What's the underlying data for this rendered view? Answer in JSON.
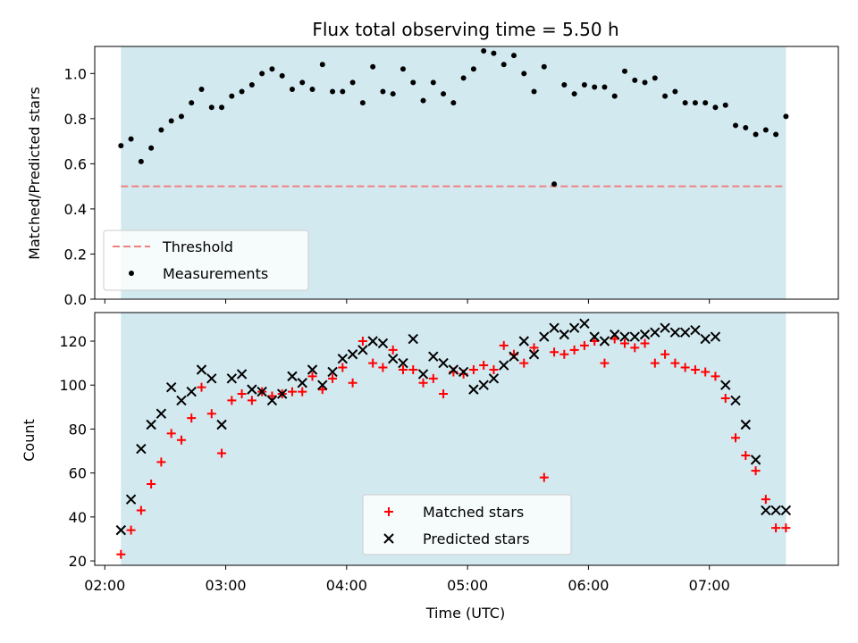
{
  "chart_data": [
    {
      "type": "scatter",
      "title": "Flux total observing time = 5.50 h",
      "xlabel": "",
      "ylabel": "Matched/Predicted stars",
      "ylim": [
        0,
        1.12
      ],
      "yticks": [
        "0.0",
        "0.2",
        "0.4",
        "0.6",
        "0.8",
        "1.0"
      ],
      "shaded_span": {
        "start": "02:08",
        "end": "07:38",
        "color": "#d3e9f0"
      },
      "grid": false,
      "legend": {
        "placement": "lower-left",
        "entries": [
          "Threshold",
          "Measurements"
        ]
      },
      "threshold": {
        "name": "Threshold",
        "y": 0.5,
        "color": "#f08080",
        "style": "dashed"
      },
      "series": [
        {
          "name": "Measurements",
          "color": "#000000",
          "marker": "dot",
          "x": [
            "02:08",
            "02:13",
            "02:18",
            "02:23",
            "02:28",
            "02:33",
            "02:38",
            "02:43",
            "02:48",
            "02:53",
            "02:58",
            "03:03",
            "03:08",
            "03:13",
            "03:18",
            "03:23",
            "03:28",
            "03:33",
            "03:38",
            "03:43",
            "03:48",
            "03:53",
            "03:58",
            "04:03",
            "04:08",
            "04:13",
            "04:18",
            "04:23",
            "04:28",
            "04:33",
            "04:38",
            "04:43",
            "04:48",
            "04:53",
            "04:58",
            "05:03",
            "05:08",
            "05:13",
            "05:18",
            "05:23",
            "05:28",
            "05:33",
            "05:38",
            "05:43",
            "05:48",
            "05:53",
            "05:58",
            "06:03",
            "06:08",
            "06:13",
            "06:18",
            "06:23",
            "06:28",
            "06:33",
            "06:38",
            "06:43",
            "06:48",
            "06:53",
            "06:58",
            "07:03",
            "07:08",
            "07:13",
            "07:18",
            "07:23",
            "07:28",
            "07:33",
            "07:38"
          ],
          "y": [
            0.68,
            0.71,
            0.61,
            0.67,
            0.75,
            0.79,
            0.81,
            0.87,
            0.93,
            0.85,
            0.85,
            0.9,
            0.92,
            0.95,
            1.0,
            1.02,
            0.99,
            0.93,
            0.96,
            0.93,
            1.04,
            0.92,
            0.92,
            0.96,
            0.87,
            1.03,
            0.92,
            0.91,
            1.02,
            0.96,
            0.88,
            0.96,
            0.91,
            0.87,
            0.98,
            1.02,
            1.1,
            1.09,
            1.04,
            1.08,
            1.0,
            0.92,
            1.03,
            0.51,
            0.95,
            0.91,
            0.95,
            0.94,
            0.94,
            0.9,
            1.01,
            0.97,
            0.96,
            0.98,
            0.9,
            0.92,
            0.87,
            0.87,
            0.87,
            0.85,
            0.86,
            0.77,
            0.76,
            0.73,
            0.75,
            0.73,
            0.81
          ]
        }
      ]
    },
    {
      "type": "scatter",
      "title": "",
      "xlabel": "Time (UTC)",
      "ylabel": "Count",
      "ylim": [
        18,
        133
      ],
      "yticks": [
        "20",
        "40",
        "60",
        "80",
        "100",
        "120"
      ],
      "x_tick_labels": [
        "02:00",
        "03:00",
        "04:00",
        "05:00",
        "06:00",
        "07:00"
      ],
      "shaded_span": {
        "start": "02:08",
        "end": "07:38",
        "color": "#d3e9f0"
      },
      "grid": false,
      "legend": {
        "placement": "lower-center",
        "entries": [
          "Matched stars",
          "Predicted stars"
        ]
      },
      "x": [
        "02:08",
        "02:13",
        "02:18",
        "02:23",
        "02:28",
        "02:33",
        "02:38",
        "02:43",
        "02:48",
        "02:53",
        "02:58",
        "03:03",
        "03:08",
        "03:13",
        "03:18",
        "03:23",
        "03:28",
        "03:33",
        "03:38",
        "03:43",
        "03:48",
        "03:53",
        "03:58",
        "04:03",
        "04:08",
        "04:13",
        "04:18",
        "04:23",
        "04:28",
        "04:33",
        "04:38",
        "04:43",
        "04:48",
        "04:53",
        "04:58",
        "05:03",
        "05:08",
        "05:13",
        "05:18",
        "05:23",
        "05:28",
        "05:33",
        "05:38",
        "05:43",
        "05:48",
        "05:53",
        "05:58",
        "06:03",
        "06:08",
        "06:13",
        "06:18",
        "06:23",
        "06:28",
        "06:33",
        "06:38",
        "06:43",
        "06:48",
        "06:53",
        "06:58",
        "07:03",
        "07:08",
        "07:13",
        "07:18",
        "07:23",
        "07:28",
        "07:33",
        "07:38"
      ],
      "series": [
        {
          "name": "Matched stars",
          "color": "#ff0000",
          "marker": "plus",
          "values": [
            23,
            34,
            43,
            55,
            65,
            78,
            75,
            85,
            99,
            87,
            69,
            93,
            96,
            93,
            97,
            95,
            96,
            97,
            97,
            104,
            98,
            103,
            108,
            101,
            120,
            110,
            108,
            116,
            107,
            107,
            101,
            103,
            96,
            106,
            105,
            107,
            109,
            107,
            118,
            114,
            110,
            117,
            58,
            115,
            114,
            116,
            118,
            120,
            110,
            121,
            119,
            117,
            119,
            110,
            114,
            110,
            108,
            107,
            106,
            104,
            94,
            76,
            68,
            61,
            48,
            35,
            35
          ]
        },
        {
          "name": "Predicted stars",
          "color": "#000000",
          "marker": "x",
          "values": [
            34,
            48,
            71,
            82,
            87,
            99,
            93,
            97,
            107,
            103,
            82,
            103,
            105,
            98,
            97,
            93,
            96,
            104,
            101,
            107,
            100,
            106,
            112,
            114,
            116,
            120,
            119,
            112,
            110,
            121,
            105,
            113,
            110,
            107,
            106,
            98,
            100,
            103,
            109,
            113,
            120,
            114,
            122,
            126,
            123,
            126,
            128,
            122,
            120,
            123,
            122,
            122,
            123,
            124,
            126,
            124,
            124,
            125,
            121,
            122,
            100,
            93,
            82,
            66,
            43,
            43,
            43
          ]
        }
      ]
    }
  ]
}
